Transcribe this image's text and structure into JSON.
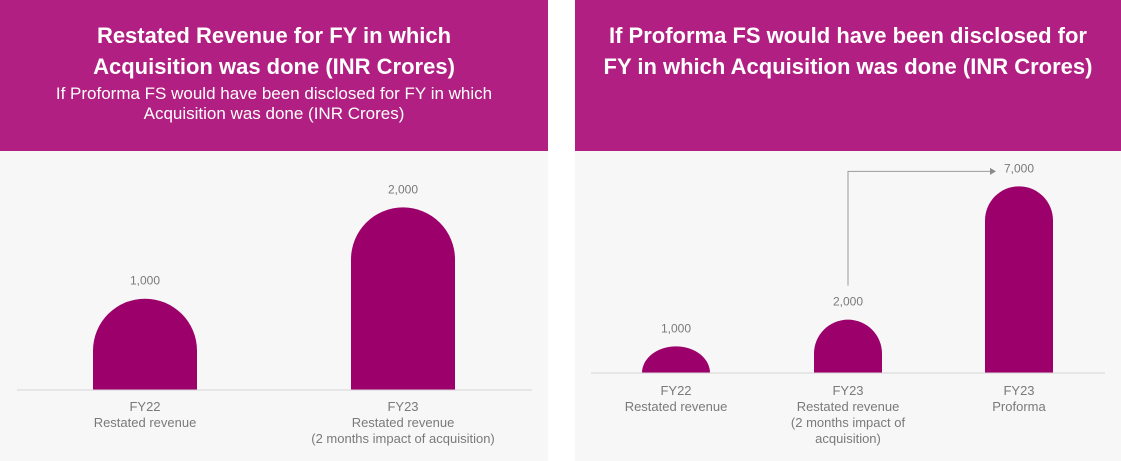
{
  "theme": {
    "accent": "#b01f81",
    "bar_color": "#9c006b",
    "axis_color": "#d4d4d4",
    "text_color": "#7a7a7a"
  },
  "left_panel": {
    "title": "Restated Revenue for FY in which Acquisition was done (INR Crores)",
    "subtitle": "If Proforma FS would have been disclosed for FY in which Acquisition was done (INR Crores)"
  },
  "right_panel": {
    "title": "If Proforma FS would have been disclosed for FY in which Acquisition was done (INR Crores)"
  },
  "chart_data": [
    {
      "type": "bar",
      "title": "Restated Revenue for FY in which Acquisition was done (INR Crores)",
      "subtitle": "If Proforma FS would have been disclosed for FY in which Acquisition was done (INR Crores)",
      "categories": [
        [
          "FY22",
          "Restated revenue"
        ],
        [
          "FY23",
          "Restated revenue",
          "(2 months impact of acquisition)"
        ]
      ],
      "values": [
        1000,
        2000
      ],
      "value_labels": [
        "1,000",
        "2,000"
      ],
      "ylim": [
        0,
        2300
      ],
      "grid": false
    },
    {
      "type": "bar",
      "title": "If Proforma FS would have been disclosed for FY in which Acquisition was done (INR Crores)",
      "categories": [
        [
          "FY22",
          "Restated revenue"
        ],
        [
          "FY23",
          "Restated revenue",
          "(2 months impact of",
          "acquisition)"
        ],
        [
          "FY23",
          "Proforma"
        ]
      ],
      "values": [
        1000,
        2000,
        7000
      ],
      "value_labels": [
        "1,000",
        "2,000",
        "7,000"
      ],
      "ylim": [
        0,
        7500
      ],
      "grid": false,
      "annotation": "arrow from FY23 restated revenue to FY23 Proforma"
    }
  ]
}
